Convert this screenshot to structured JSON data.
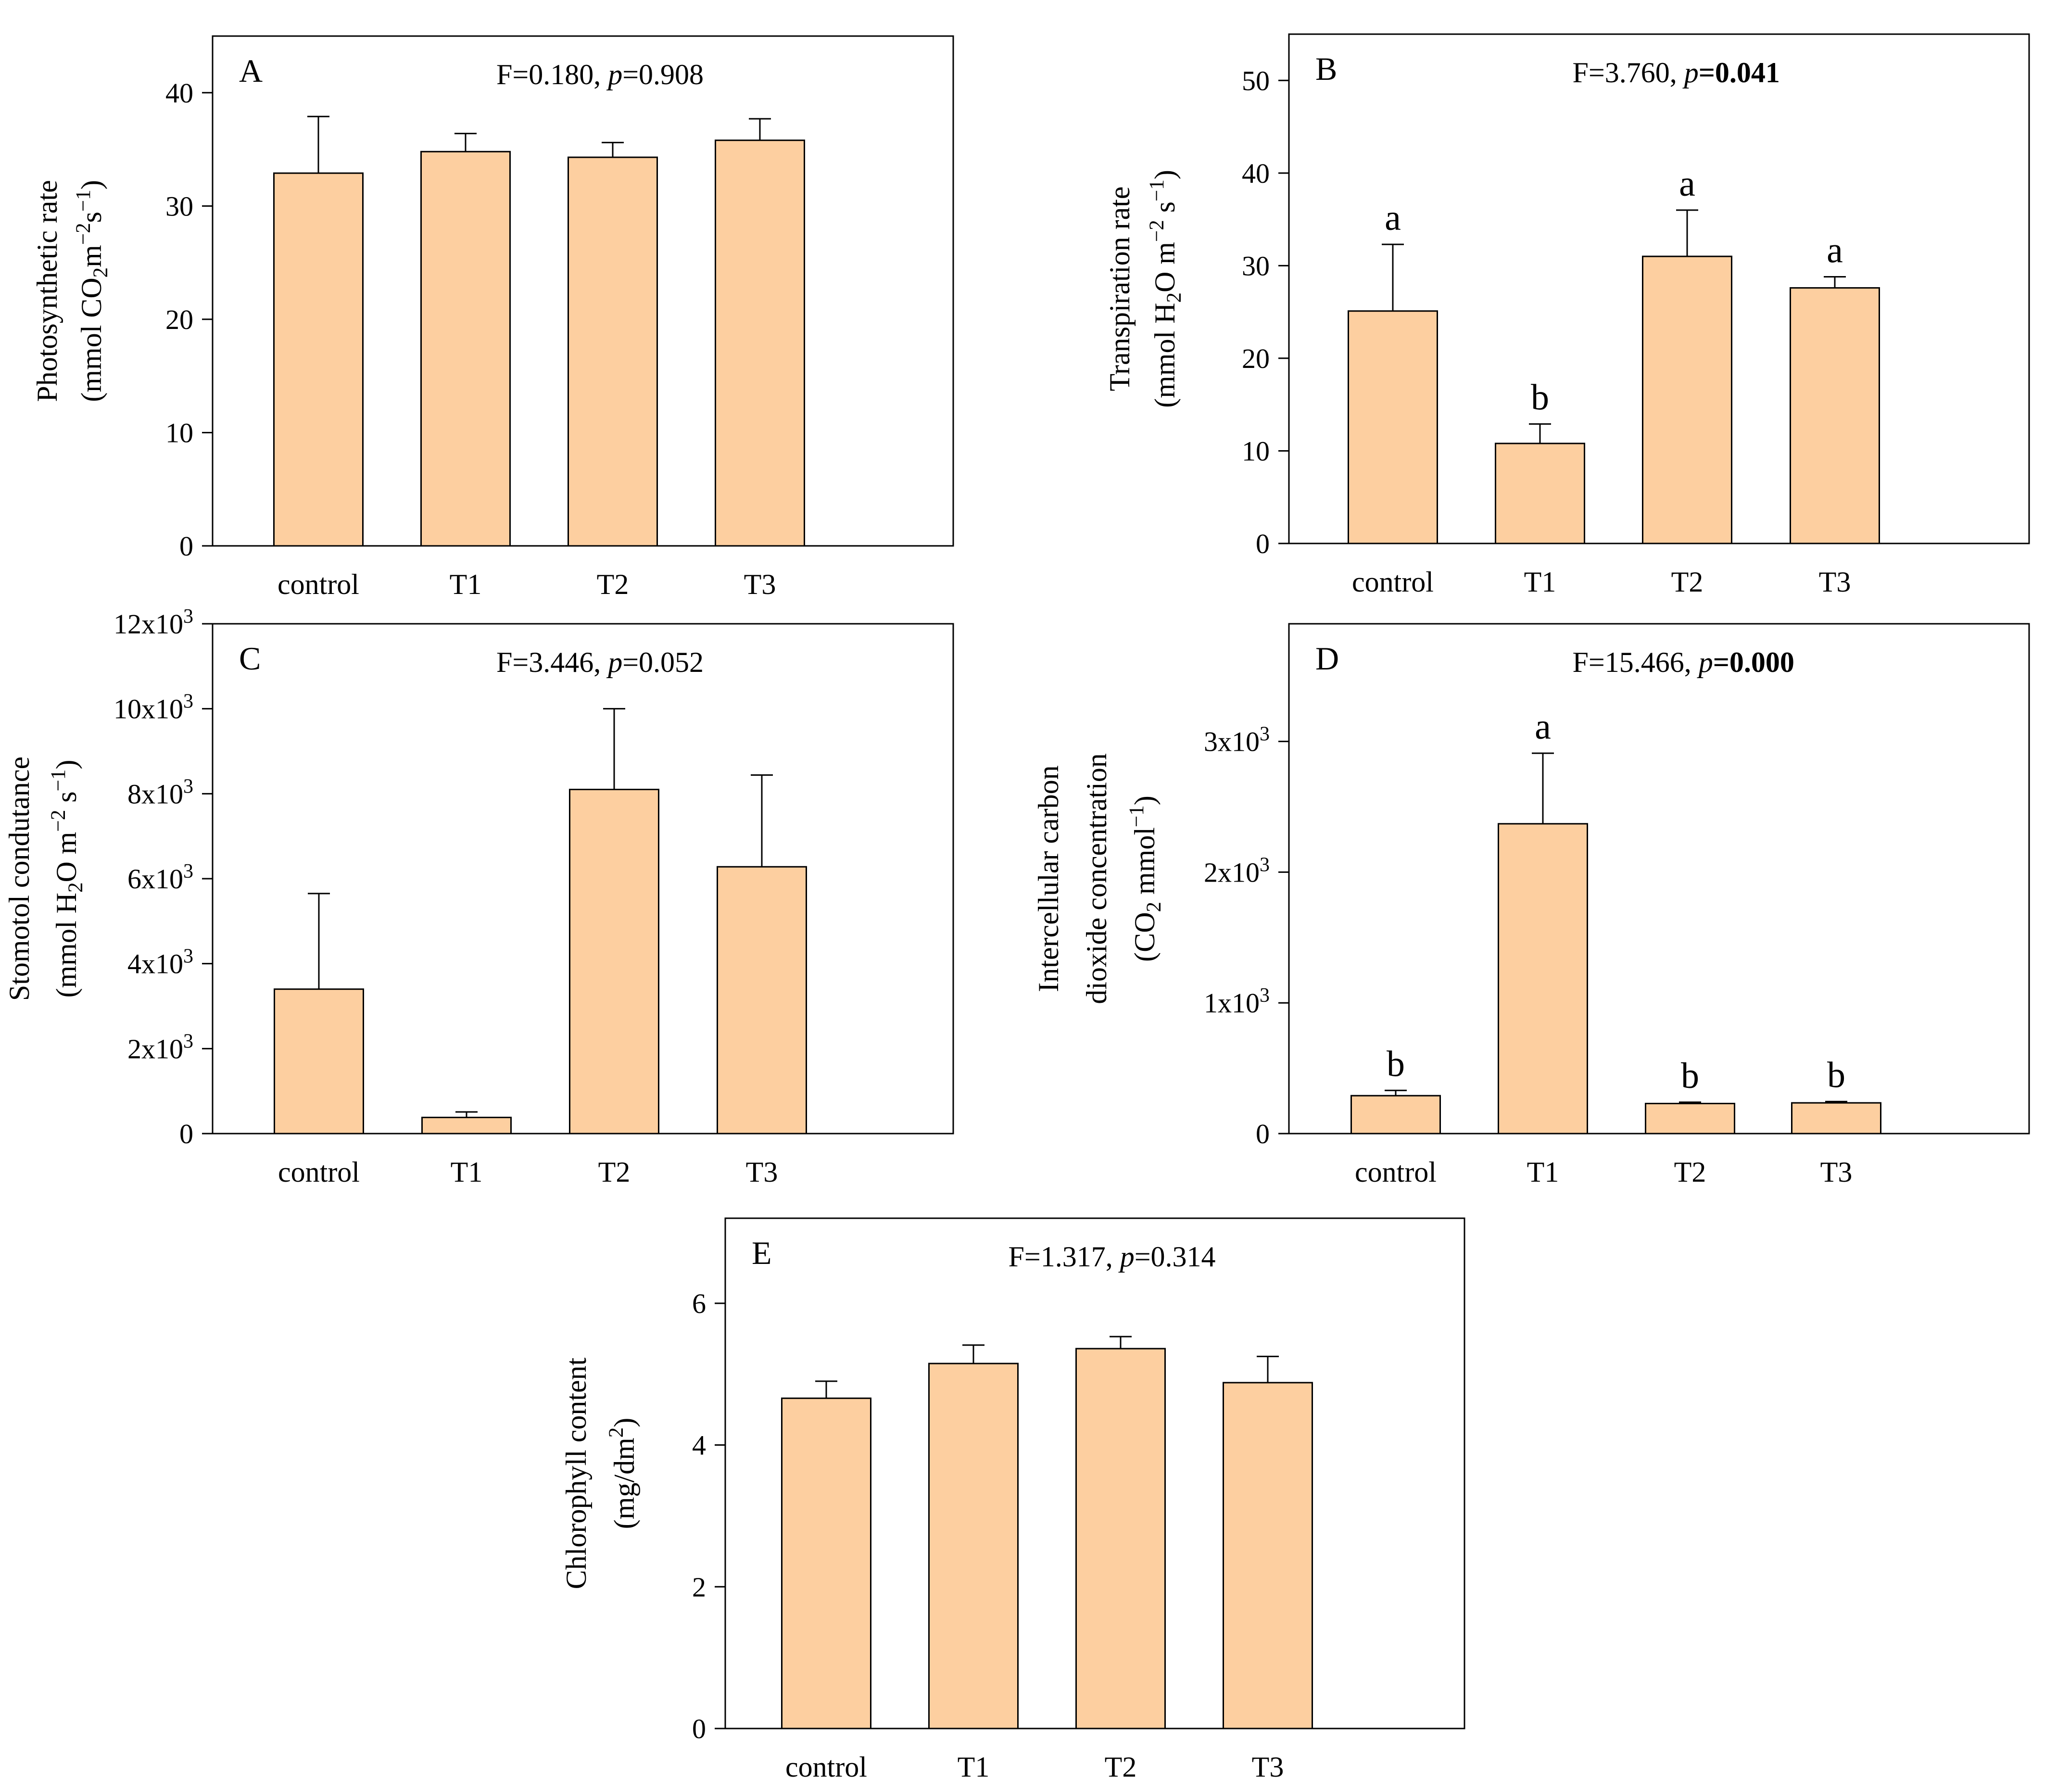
{
  "chart_data": [
    {
      "panel": "A",
      "type": "bar",
      "stat_text": "F=0.180, p=0.908",
      "stat_f": "F=0.180, ",
      "stat_p_label": "p",
      "stat_p_value": "=0.908",
      "stat_p_bold": false,
      "ylabel_line1": "Photosynthetic rate",
      "ylabel_line2": "(mmol CO2m-2s-1)",
      "ylim": [
        0,
        45
      ],
      "yticks": [
        0,
        10,
        20,
        30,
        40
      ],
      "ytick_labels": [
        "0",
        "10",
        "20",
        "30",
        "40"
      ],
      "categories": [
        "control",
        "T1",
        "T2",
        "T3"
      ],
      "values": [
        32.9,
        34.8,
        34.3,
        35.8
      ],
      "errors": [
        5.0,
        1.6,
        1.3,
        1.9
      ],
      "letters": [
        "",
        "",
        "",
        ""
      ]
    },
    {
      "panel": "B",
      "type": "bar",
      "stat_text": "F=3.760, p=0.041",
      "stat_f": "F=3.760, ",
      "stat_p_label": "p",
      "stat_p_value": "=0.041",
      "stat_p_bold": true,
      "ylabel_line1": "Transpiration rate",
      "ylabel_line2": "(mmol H2O m-2 s-1)",
      "ylim": [
        0,
        55
      ],
      "yticks": [
        0,
        10,
        20,
        30,
        40,
        50
      ],
      "ytick_labels": [
        "0",
        "10",
        "20",
        "30",
        "40",
        "50"
      ],
      "categories": [
        "control",
        "T1",
        "T2",
        "T3"
      ],
      "values": [
        25.1,
        10.8,
        31.0,
        27.6
      ],
      "errors": [
        7.2,
        2.1,
        5.0,
        1.2
      ],
      "letters": [
        "a",
        "b",
        "a",
        "a"
      ]
    },
    {
      "panel": "C",
      "type": "bar",
      "stat_text": "F=3.446, p=0.052",
      "stat_f": "F=3.446, ",
      "stat_p_label": "p",
      "stat_p_value": "=0.052",
      "stat_p_bold": false,
      "ylabel_line1": "Stomotol condutance",
      "ylabel_line2": "(mmol H2O m-2 s-1)",
      "ylim": [
        0,
        12000
      ],
      "yticks": [
        0,
        2000,
        4000,
        6000,
        8000,
        10000,
        12000
      ],
      "ytick_labels": [
        "0",
        "2x103",
        "4x103",
        "6x103",
        "8x103",
        "10x103",
        "12x103"
      ],
      "categories": [
        "control",
        "T1",
        "T2",
        "T3"
      ],
      "values": [
        3400,
        380,
        8100,
        6280
      ],
      "errors": [
        2250,
        130,
        1900,
        2160
      ],
      "letters": [
        "",
        "",
        "",
        ""
      ]
    },
    {
      "panel": "D",
      "type": "bar",
      "stat_text": "F=15.466, p=0.000",
      "stat_f": "F=15.466, ",
      "stat_p_label": "p",
      "stat_p_value": "=0.000",
      "stat_p_bold": true,
      "ylabel_line1": "Intercellular carbon",
      "ylabel_line2": "dioxide concentration",
      "ylabel_line3": "(CO2 mmol-1)",
      "ylim": [
        0,
        3900
      ],
      "yticks": [
        0,
        1000,
        2000,
        3000
      ],
      "ytick_labels": [
        "0",
        "1x103",
        "2x103",
        "3x103"
      ],
      "categories": [
        "control",
        "T1",
        "T2",
        "T3"
      ],
      "values": [
        290,
        2370,
        230,
        235
      ],
      "errors": [
        40,
        540,
        10,
        10
      ],
      "letters": [
        "b",
        "a",
        "b",
        "b"
      ]
    },
    {
      "panel": "E",
      "type": "bar",
      "stat_text": "F=1.317, p=0.314",
      "stat_f": "F=1.317, ",
      "stat_p_label": "p",
      "stat_p_value": "=0.314",
      "stat_p_bold": false,
      "ylabel_line1": "Chlorophyll content",
      "ylabel_line2": "(mg/dm2)",
      "ylim": [
        0,
        7.2
      ],
      "yticks": [
        0,
        2,
        4,
        6
      ],
      "ytick_labels": [
        "0",
        "2",
        "4",
        "6"
      ],
      "categories": [
        "control",
        "T1",
        "T2",
        "T3"
      ],
      "values": [
        4.66,
        5.15,
        5.36,
        4.88
      ],
      "errors": [
        0.24,
        0.26,
        0.17,
        0.37
      ],
      "letters": [
        "",
        "",
        "",
        ""
      ]
    }
  ],
  "colors": {
    "bar_fill": "#fdcfa0",
    "stroke": "#000000",
    "background": "#ffffff"
  }
}
